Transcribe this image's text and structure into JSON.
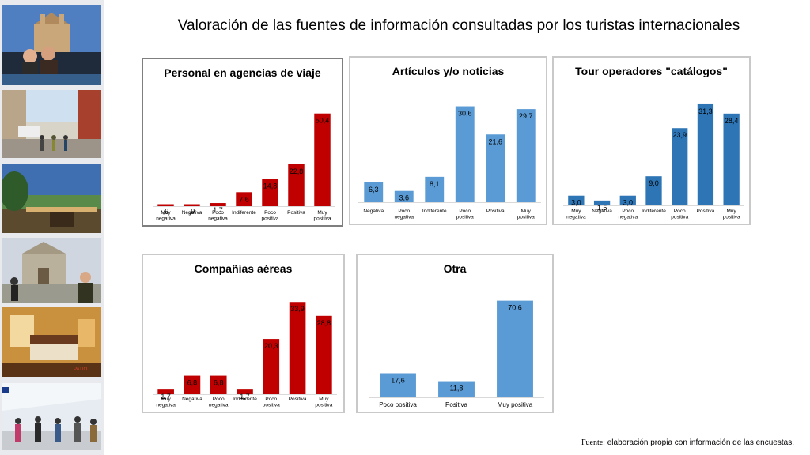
{
  "title": "Valoración de las fuentes de información consultadas por los turistas internacionales",
  "source": {
    "prefix": "Fuente:",
    "text": " elaboración propia con información de las encuestas."
  },
  "colors": {
    "red": "#c00000",
    "light_blue": "#5b9bd5",
    "mid_blue": "#2e75b6"
  },
  "chart_data": [
    {
      "id": "agencias",
      "type": "bar",
      "title": "Personal en agencias de viaje",
      "color": "#c00000",
      "categories": [
        "Muy negativa",
        "Negativa",
        "Poco negativa",
        "Indiferente",
        "Poco positiva",
        "Positiva",
        "Muy positiva"
      ],
      "values": [
        0.9,
        0.9,
        1.7,
        7.6,
        14.8,
        22.8,
        50.4
      ],
      "labels": [
        ",9",
        ",9",
        "1,7",
        "7,6",
        "14,8",
        "22,8",
        "50,4"
      ],
      "ylim": [
        0,
        55
      ]
    },
    {
      "id": "articulos",
      "type": "bar",
      "title": "Artículos y/o noticias",
      "color": "#5b9bd5",
      "categories": [
        "Negativa",
        "Poco negativa",
        "Indiferente",
        "Poco positiva",
        "Positiva",
        "Muy positiva"
      ],
      "values": [
        6.3,
        3.6,
        8.1,
        30.6,
        21.6,
        29.7
      ],
      "labels": [
        "6,3",
        "3,6",
        "8,1",
        "30,6",
        "21,6",
        "29,7"
      ],
      "ylim": [
        0,
        33
      ]
    },
    {
      "id": "tour",
      "type": "bar",
      "title": "Tour operadores \"catálogos\"",
      "color": "#2e75b6",
      "categories": [
        "Muy negativa",
        "Negativa",
        "Poco negativa",
        "Indiferente",
        "Poco positiva",
        "Positiva",
        "Muy positiva"
      ],
      "values": [
        3.0,
        1.5,
        3.0,
        9.0,
        23.9,
        31.3,
        28.4
      ],
      "labels": [
        "3,0",
        "1,5",
        "3,0",
        "9,0",
        "23,9",
        "31,3",
        "28,4"
      ],
      "ylim": [
        0,
        33
      ]
    },
    {
      "id": "aereas",
      "type": "bar",
      "title": "Compañías aéreas",
      "color": "#c00000",
      "categories": [
        "Muy negativa",
        "Negativa",
        "Poco negativa",
        "Indiferente",
        "Poco positiva",
        "Positiva",
        "Muy positiva"
      ],
      "values": [
        1.7,
        6.8,
        6.8,
        1.7,
        20.3,
        33.9,
        28.8
      ],
      "labels": [
        "1,7",
        "6,8",
        "6,8",
        "1,7",
        "20,3",
        "33,9",
        "28,8"
      ],
      "ylim": [
        0,
        36
      ]
    },
    {
      "id": "otra",
      "type": "bar",
      "title": "Otra",
      "color": "#5b9bd5",
      "categories": [
        "Poco positiva",
        "Positiva",
        "Muy positiva"
      ],
      "values": [
        17.6,
        11.8,
        70.6
      ],
      "labels": [
        "17,6",
        "11,8",
        "70,6"
      ],
      "ylim": [
        0,
        75
      ]
    }
  ]
}
